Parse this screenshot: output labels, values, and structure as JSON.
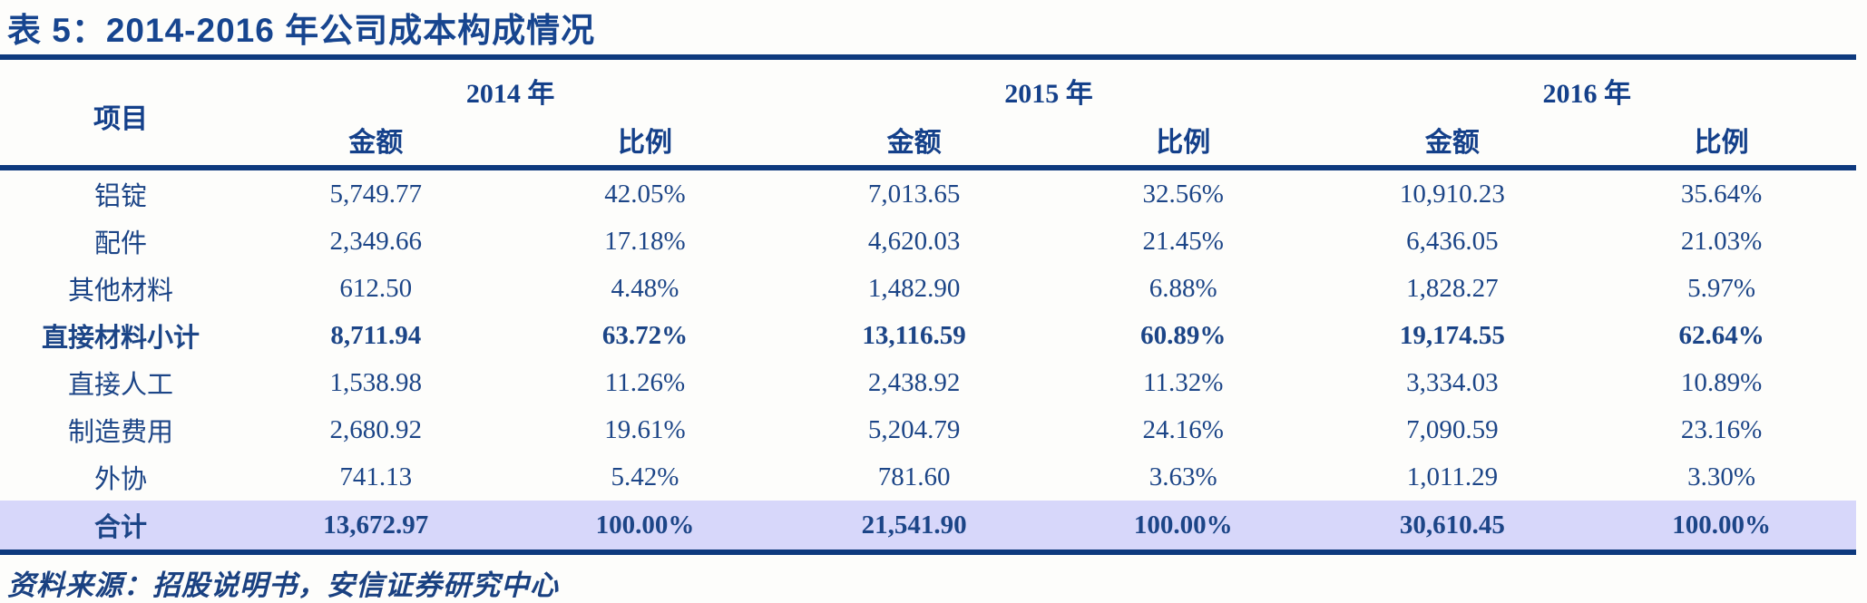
{
  "table": {
    "title": "表 5：2014-2016 年公司成本构成情况",
    "row_header_label": "项目",
    "year_groups": [
      {
        "year": "2014 年",
        "amount_label": "金额",
        "ratio_label": "比例"
      },
      {
        "year": "2015 年",
        "amount_label": "金额",
        "ratio_label": "比例"
      },
      {
        "year": "2016 年",
        "amount_label": "金额",
        "ratio_label": "比例"
      }
    ],
    "rows": [
      {
        "label": "铝锭",
        "values": [
          "5,749.77",
          "42.05%",
          "7,013.65",
          "32.56%",
          "10,910.23",
          "35.64%"
        ]
      },
      {
        "label": "配件",
        "values": [
          "2,349.66",
          "17.18%",
          "4,620.03",
          "21.45%",
          "6,436.05",
          "21.03%"
        ]
      },
      {
        "label": "其他材料",
        "values": [
          "612.50",
          "4.48%",
          "1,482.90",
          "6.88%",
          "1,828.27",
          "5.97%"
        ]
      },
      {
        "label": "直接材料小计",
        "values": [
          "8,711.94",
          "63.72%",
          "13,116.59",
          "60.89%",
          "19,174.55",
          "62.64%"
        ]
      },
      {
        "label": "直接人工",
        "values": [
          "1,538.98",
          "11.26%",
          "2,438.92",
          "11.32%",
          "3,334.03",
          "10.89%"
        ]
      },
      {
        "label": "制造费用",
        "values": [
          "2,680.92",
          "19.61%",
          "5,204.79",
          "24.16%",
          "7,090.59",
          "23.16%"
        ]
      },
      {
        "label": "外协",
        "values": [
          "741.13",
          "5.42%",
          "781.60",
          "3.63%",
          "1,011.29",
          "3.30%"
        ]
      },
      {
        "label": "合计",
        "values": [
          "13,672.97",
          "100.00%",
          "21,541.90",
          "100.00%",
          "30,610.45",
          "100.00%"
        ]
      }
    ],
    "source_note": "资料来源：招股说明书，安信证券研究中心"
  },
  "colors": {
    "navy_text": "#1C4587",
    "title_text": "#17458F",
    "rule_line": "#0E3A7E",
    "total_row_background": "#D7D7FA"
  }
}
